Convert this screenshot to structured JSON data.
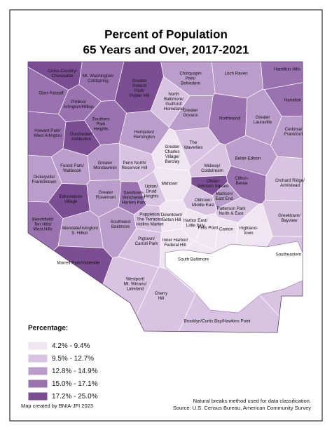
{
  "title": [
    "Percent of Population",
    "65 Years and Over, 2017-2021"
  ],
  "legend": {
    "title": "Percentage:",
    "items": [
      {
        "label": "4.2% - 9.4%",
        "color": "#efe6f2"
      },
      {
        "label": "9.5% - 12.7%",
        "color": "#d8c4e2"
      },
      {
        "label": "12.8% - 14.9%",
        "color": "#bb9dcb"
      },
      {
        "label": "15.0% - 17.1%",
        "color": "#9a72b0"
      },
      {
        "label": "17.2% - 25.0%",
        "color": "#7b4e93"
      }
    ]
  },
  "neighborhoods": [
    {
      "lines": [
        "Cross-Country/",
        "Cheswolde"
      ],
      "color": "#7b4e93"
    },
    {
      "lines": [
        "Mt. Washington/",
        "Coldspring"
      ],
      "color": "#9a72b0"
    },
    {
      "lines": [
        "Glen-Falstaff"
      ],
      "color": "#9a72b0"
    },
    {
      "lines": [
        "Greater",
        "Roland",
        "Park/",
        "Poplar Hill"
      ],
      "color": "#7b4e93"
    },
    {
      "lines": [
        "Chinquapin",
        "Park/",
        "Belvedere"
      ],
      "color": "#bb9dcb"
    },
    {
      "lines": [
        "Loch Raven"
      ],
      "color": "#bb9dcb"
    },
    {
      "lines": [
        "Hamilton Hills"
      ],
      "color": "#9a72b0"
    },
    {
      "lines": [
        "North",
        "Baltimore/",
        "Guilford/",
        "Homeland"
      ],
      "color": "#d8c4e2"
    },
    {
      "lines": [
        "Hamilton"
      ],
      "color": "#9a72b0"
    },
    {
      "lines": [
        "Pimlico/",
        "Arlington/Hilltop"
      ],
      "color": "#9a72b0"
    },
    {
      "lines": [
        "Northwood"
      ],
      "color": "#9a72b0"
    },
    {
      "lines": [
        "Greater",
        "Govans"
      ],
      "color": "#bb9dcb"
    },
    {
      "lines": [
        "Greater",
        "Lauraville"
      ],
      "color": "#bb9dcb"
    },
    {
      "lines": [
        "Southern",
        "Park",
        "Heights"
      ],
      "color": "#9a72b0"
    },
    {
      "lines": [
        "Howard Park/",
        "West Arlington"
      ],
      "color": "#9a72b0"
    },
    {
      "lines": [
        "Dorchester/",
        "Ashburton"
      ],
      "color": "#7b4e93"
    },
    {
      "lines": [
        "Hampden/",
        "Remington"
      ],
      "color": "#bb9dcb"
    },
    {
      "lines": [
        "Cedonia/",
        "Frankford"
      ],
      "color": "#bb9dcb"
    },
    {
      "lines": [
        "The",
        "Waverlies"
      ],
      "color": "#d8c4e2"
    },
    {
      "lines": [
        "Greater",
        "Charles",
        "Village/",
        "Barclay"
      ],
      "color": "#efe6f2"
    },
    {
      "lines": [
        "Belair-Edison"
      ],
      "color": "#bb9dcb"
    },
    {
      "lines": [
        "Forest Park/",
        "Walbrook"
      ],
      "color": "#bb9dcb"
    },
    {
      "lines": [
        "Greater",
        "Mondawmin"
      ],
      "color": "#bb9dcb"
    },
    {
      "lines": [
        "Penn North/",
        "Reservoir Hill"
      ],
      "color": "#d8c4e2"
    },
    {
      "lines": [
        "Midway/",
        "Coldstream"
      ],
      "color": "#d8c4e2"
    },
    {
      "lines": [
        "Dickeyville/",
        "Franklintown"
      ],
      "color": "#bb9dcb"
    },
    {
      "lines": [
        "Clifton-",
        "Berea"
      ],
      "color": "#9a72b0"
    },
    {
      "lines": [
        "Orchard Ridge/",
        "Armistead"
      ],
      "color": "#d8c4e2"
    },
    {
      "lines": [
        "Midtown"
      ],
      "color": "#efe6f2"
    },
    {
      "lines": [
        "Oliver/",
        "Johnson Square"
      ],
      "color": "#7b4e93"
    },
    {
      "lines": [
        "Upton/",
        "Druid",
        "Heights"
      ],
      "color": "#d8c4e2"
    },
    {
      "lines": [
        "Greater",
        "Rosemont"
      ],
      "color": "#bb9dcb"
    },
    {
      "lines": [
        "Sandtown-",
        "Winchester/",
        "Harlem Park"
      ],
      "color": "#9a72b0"
    },
    {
      "lines": [
        "Edmondson",
        "Village"
      ],
      "color": "#7b4e93"
    },
    {
      "lines": [
        "Madison/",
        "East End"
      ],
      "color": "#bb9dcb"
    },
    {
      "lines": [
        "Oldtown/",
        "Middle East"
      ],
      "color": "#d8c4e2"
    },
    {
      "lines": [
        "Patterson Park",
        "North & East"
      ],
      "color": "#d8c4e2"
    },
    {
      "lines": [
        "Beechfield/",
        "Ten Hills/",
        "West Hills"
      ],
      "color": "#9a72b0"
    },
    {
      "lines": [
        "Allendale/Irvington/",
        "S. Hilton"
      ],
      "color": "#bb9dcb"
    },
    {
      "lines": [
        "Southwest",
        "Baltimore"
      ],
      "color": "#bb9dcb"
    },
    {
      "lines": [
        "Poppleton/",
        "The Terraces/",
        "Hollins Market"
      ],
      "color": "#d8c4e2"
    },
    {
      "lines": [
        "Downtown/",
        "Seton Hill"
      ],
      "color": "#efe6f2"
    },
    {
      "lines": [
        "Greektown/",
        "Bayview"
      ],
      "color": "#d8c4e2"
    },
    {
      "lines": [
        "Harbor East/",
        "Little Italy"
      ],
      "color": "#efe6f2"
    },
    {
      "lines": [
        "Fells Point"
      ],
      "color": "#efe6f2"
    },
    {
      "lines": [
        "Canton"
      ],
      "color": "#efe6f2"
    },
    {
      "lines": [
        "Highland-",
        "town"
      ],
      "color": "#efe6f2"
    },
    {
      "lines": [
        "Pigtown/",
        "Carroll Park"
      ],
      "color": "#d8c4e2"
    },
    {
      "lines": [
        "Inner Harbor/",
        "Federal Hill"
      ],
      "color": "#efe6f2"
    },
    {
      "lines": [
        "Southeastern"
      ],
      "color": "#d8c4e2"
    },
    {
      "lines": [
        "South Baltimore"
      ],
      "color": "#efe6f2"
    },
    {
      "lines": [
        "Morrell Park/Violetville"
      ],
      "color": "#7b4e93"
    },
    {
      "lines": [
        "Westport/",
        "Mt. Winans/",
        "Lakeland"
      ],
      "color": "#d8c4e2"
    },
    {
      "lines": [
        "Cherry",
        "Hill"
      ],
      "color": "#d8c4e2"
    },
    {
      "lines": [
        "Brooklyn/Curtis Bay/Hawkins Point"
      ],
      "color": "#d8c4e2"
    }
  ],
  "footer": {
    "credit": "Map created by BNIA-JFI 2023",
    "notes": [
      "Natural breaks method used for data classification.",
      "Source: U.S. Census Bureau, American Community Survey"
    ]
  }
}
